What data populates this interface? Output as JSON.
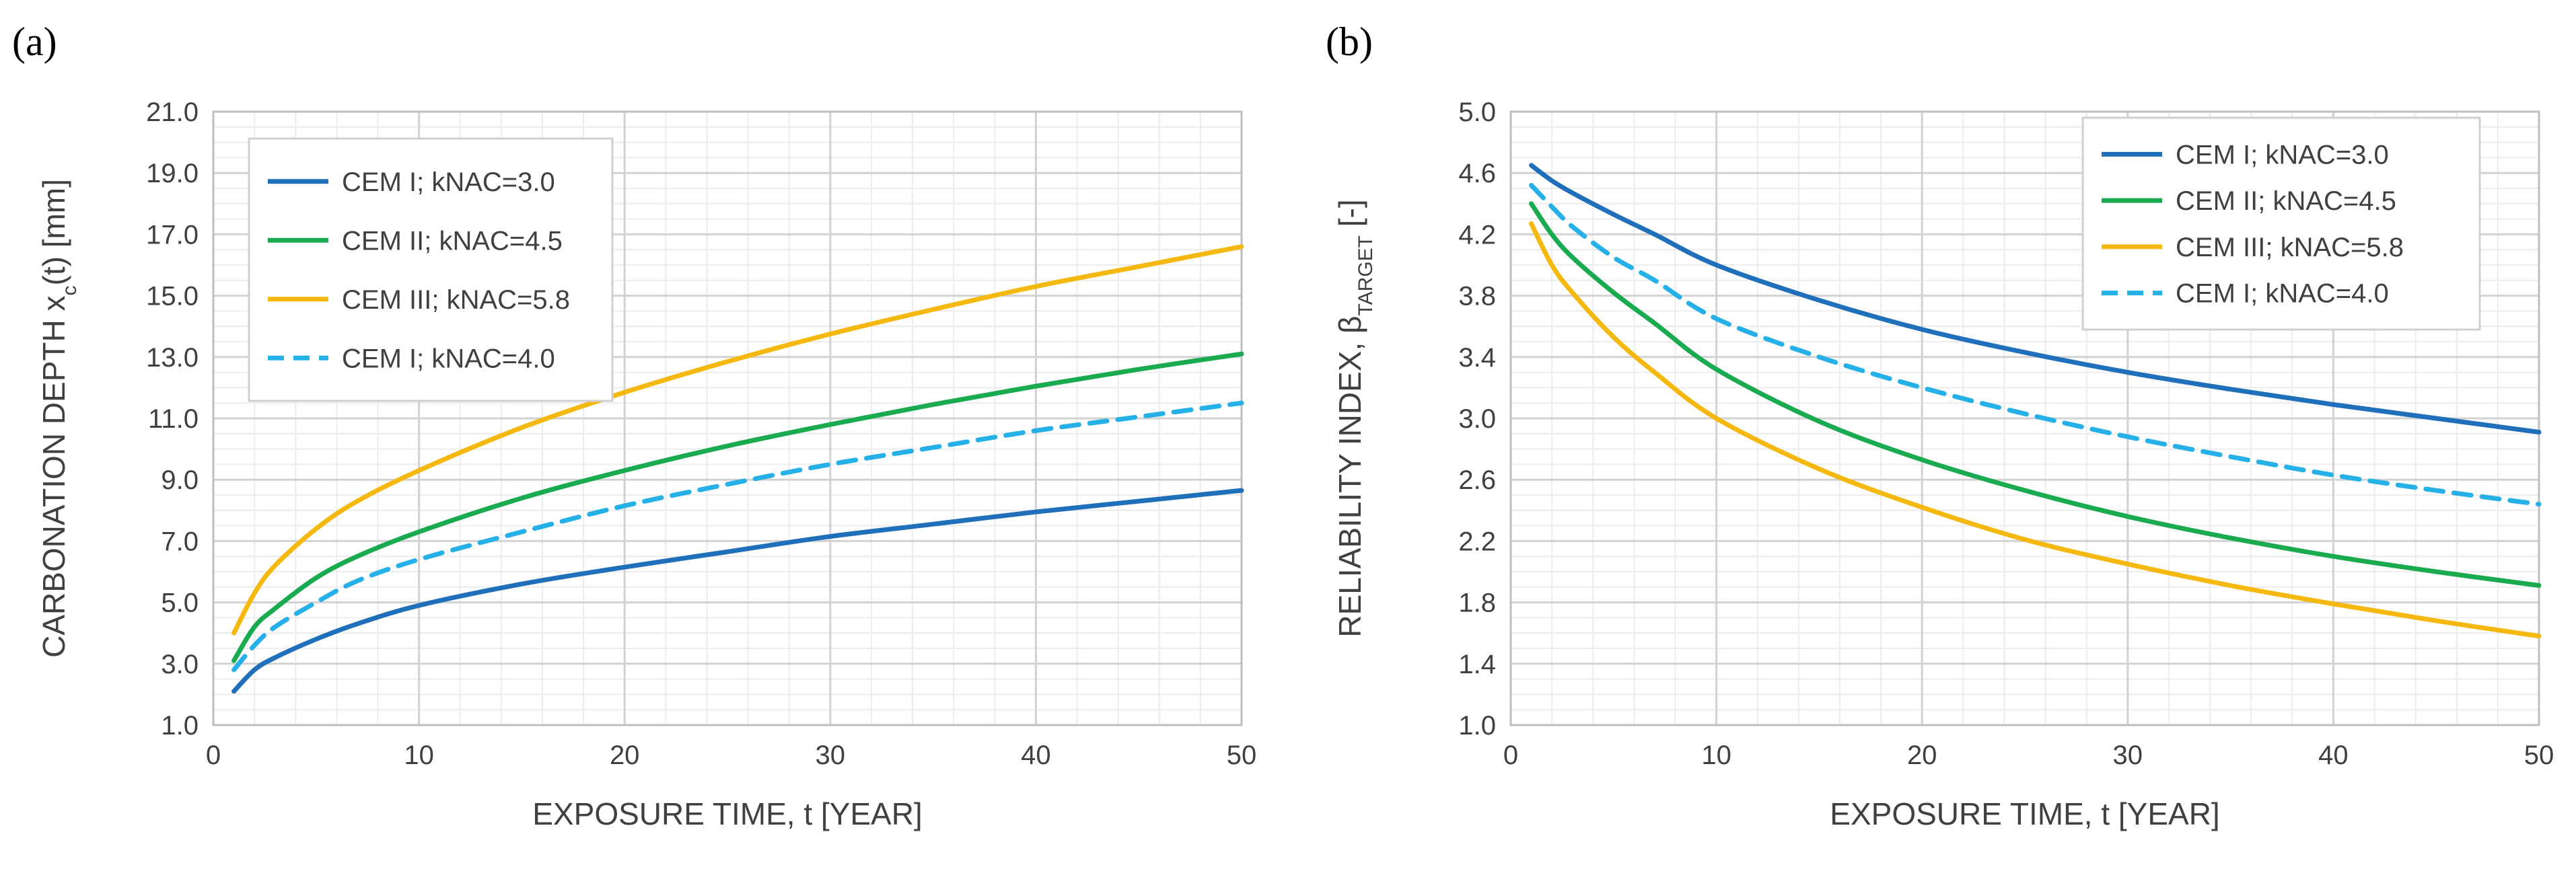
{
  "chart_data": [
    {
      "type": "line",
      "panel_label": "(a)",
      "xlabel": "EXPOSURE TIME, t [YEAR]",
      "ylabel": {
        "main": "CARBONATION DEPTH x",
        "sub": "c",
        "tail": "(t) [mm]"
      },
      "xlim": [
        0,
        50
      ],
      "ylim": [
        1.0,
        21.0
      ],
      "x_ticks": [
        "0",
        "10",
        "20",
        "30",
        "40",
        "50"
      ],
      "y_ticks": [
        "1.0",
        "3.0",
        "5.0",
        "7.0",
        "9.0",
        "11.0",
        "13.0",
        "15.0",
        "17.0",
        "19.0",
        "21.0"
      ],
      "grid": true,
      "legend_position": "top-left",
      "series": [
        {
          "name": "CEM I; kNAC=3.0",
          "color": "#1f6fba",
          "dash": false,
          "x": [
            1,
            2,
            3,
            5,
            7,
            10,
            15,
            20,
            25,
            30,
            35,
            40,
            45,
            50
          ],
          "y": [
            2.1,
            2.8,
            3.2,
            3.8,
            4.3,
            4.9,
            5.6,
            6.15,
            6.65,
            7.15,
            7.55,
            7.95,
            8.3,
            8.65
          ]
        },
        {
          "name": "CEM II; kNAC=4.5",
          "color": "#1aaa50",
          "dash": false,
          "x": [
            1,
            2,
            3,
            5,
            7,
            10,
            15,
            20,
            25,
            30,
            35,
            40,
            45,
            50
          ],
          "y": [
            3.1,
            4.2,
            4.8,
            5.8,
            6.5,
            7.3,
            8.4,
            9.3,
            10.1,
            10.8,
            11.45,
            12.05,
            12.6,
            13.1
          ]
        },
        {
          "name": "CEM III; kNAC=5.8",
          "color": "#f5b80e",
          "dash": false,
          "x": [
            1,
            2,
            3,
            5,
            7,
            10,
            15,
            20,
            25,
            30,
            35,
            40,
            45,
            50
          ],
          "y": [
            4.0,
            5.3,
            6.2,
            7.4,
            8.3,
            9.3,
            10.7,
            11.85,
            12.85,
            13.75,
            14.55,
            15.3,
            15.95,
            16.6
          ]
        },
        {
          "name": "CEM I; kNAC=4.0",
          "color": "#26b0e8",
          "dash": true,
          "x": [
            1,
            2,
            3,
            5,
            7,
            10,
            15,
            20,
            25,
            30,
            35,
            40,
            45,
            50
          ],
          "y": [
            2.8,
            3.6,
            4.2,
            5.0,
            5.7,
            6.4,
            7.3,
            8.15,
            8.85,
            9.5,
            10.05,
            10.6,
            11.05,
            11.5
          ]
        }
      ]
    },
    {
      "type": "line",
      "panel_label": "(b)",
      "xlabel": "EXPOSURE TIME, t [YEAR]",
      "ylabel": {
        "main": "RELIABILITY INDEX, β",
        "sub": "TARGET",
        "tail": " [-]"
      },
      "xlim": [
        0,
        50
      ],
      "ylim": [
        1.0,
        5.0
      ],
      "x_ticks": [
        "0",
        "10",
        "20",
        "30",
        "40",
        "50"
      ],
      "y_ticks": [
        "1.0",
        "1.4",
        "1.8",
        "2.2",
        "2.6",
        "3.0",
        "3.4",
        "3.8",
        "4.2",
        "4.6",
        "5.0"
      ],
      "grid": true,
      "legend_position": "top-right",
      "series": [
        {
          "name": "CEM I; kNAC=3.0",
          "color": "#1f6fba",
          "dash": false,
          "x": [
            1,
            2,
            3,
            5,
            7,
            10,
            15,
            20,
            25,
            30,
            35,
            40,
            45,
            50
          ],
          "y": [
            4.65,
            4.55,
            4.47,
            4.33,
            4.2,
            4.0,
            3.77,
            3.58,
            3.43,
            3.3,
            3.19,
            3.09,
            3.0,
            2.91
          ]
        },
        {
          "name": "CEM II; kNAC=4.5",
          "color": "#1aaa50",
          "dash": false,
          "x": [
            1,
            2,
            3,
            5,
            7,
            10,
            15,
            20,
            25,
            30,
            35,
            40,
            45,
            50
          ],
          "y": [
            4.4,
            4.2,
            4.05,
            3.82,
            3.62,
            3.32,
            2.98,
            2.73,
            2.53,
            2.36,
            2.22,
            2.1,
            2.0,
            1.91
          ]
        },
        {
          "name": "CEM III; kNAC=5.8",
          "color": "#f5b80e",
          "dash": false,
          "x": [
            1,
            2,
            3,
            5,
            7,
            10,
            15,
            20,
            25,
            30,
            35,
            40,
            45,
            50
          ],
          "y": [
            4.27,
            4.0,
            3.82,
            3.53,
            3.3,
            3.0,
            2.67,
            2.42,
            2.21,
            2.05,
            1.91,
            1.79,
            1.68,
            1.58
          ]
        },
        {
          "name": "CEM I; kNAC=4.0",
          "color": "#26b0e8",
          "dash": true,
          "x": [
            1,
            2,
            3,
            5,
            7,
            10,
            15,
            20,
            25,
            30,
            35,
            40,
            45,
            50
          ],
          "y": [
            4.52,
            4.38,
            4.25,
            4.05,
            3.9,
            3.65,
            3.4,
            3.2,
            3.03,
            2.88,
            2.75,
            2.63,
            2.53,
            2.44
          ]
        }
      ]
    }
  ]
}
